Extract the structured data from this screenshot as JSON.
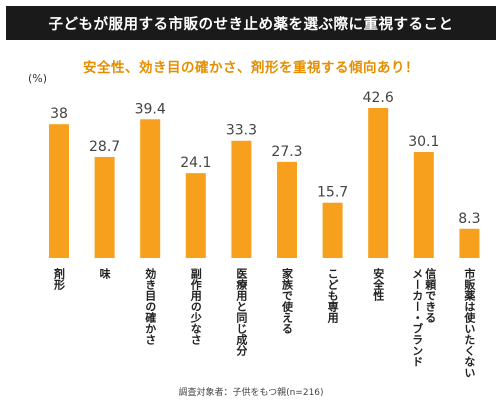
{
  "header": {
    "title": "子どもが服用する市販のせき止め薬を選ぶ際に重視すること",
    "subtitle": "安全性、効き目の確かさ、剤形を重視する傾向あり！"
  },
  "footnote": "調査対象者：子供をもつ親(n=216)",
  "colors": {
    "bar": "#f7a01e",
    "title_bg": "#1a1a1a",
    "subtitle": "#e58e00"
  },
  "chart_data": {
    "type": "bar",
    "unit_label": "(%)",
    "categories": [
      "剤形",
      "味",
      "効き目の確かさ",
      "副作用の少なさ",
      "医療用と同じ成分",
      "家族で使える",
      "こども専用",
      "安全性",
      "信頼できるメーカー・ブランド",
      "市販薬は使いたくない"
    ],
    "category_lines": [
      [
        "剤形"
      ],
      [
        "味"
      ],
      [
        "効き目の確かさ"
      ],
      [
        "副作用の少なさ"
      ],
      [
        "医療用と同じ成分"
      ],
      [
        "家族で使える"
      ],
      [
        "こども専用"
      ],
      [
        "安全性"
      ],
      [
        "信頼できる",
        "メーカー・ブランド"
      ],
      [
        "市販薬は使いたくない"
      ]
    ],
    "values": [
      38,
      28.7,
      39.4,
      24.1,
      33.3,
      27.3,
      15.7,
      42.6,
      30.1,
      8.3
    ],
    "value_labels": [
      "38",
      "28.7",
      "39.4",
      "24.1",
      "33.3",
      "27.3",
      "15.7",
      "42.6",
      "30.1",
      "8.3"
    ],
    "ylim": [
      0,
      42.6
    ],
    "grid": false,
    "legend": "none"
  }
}
